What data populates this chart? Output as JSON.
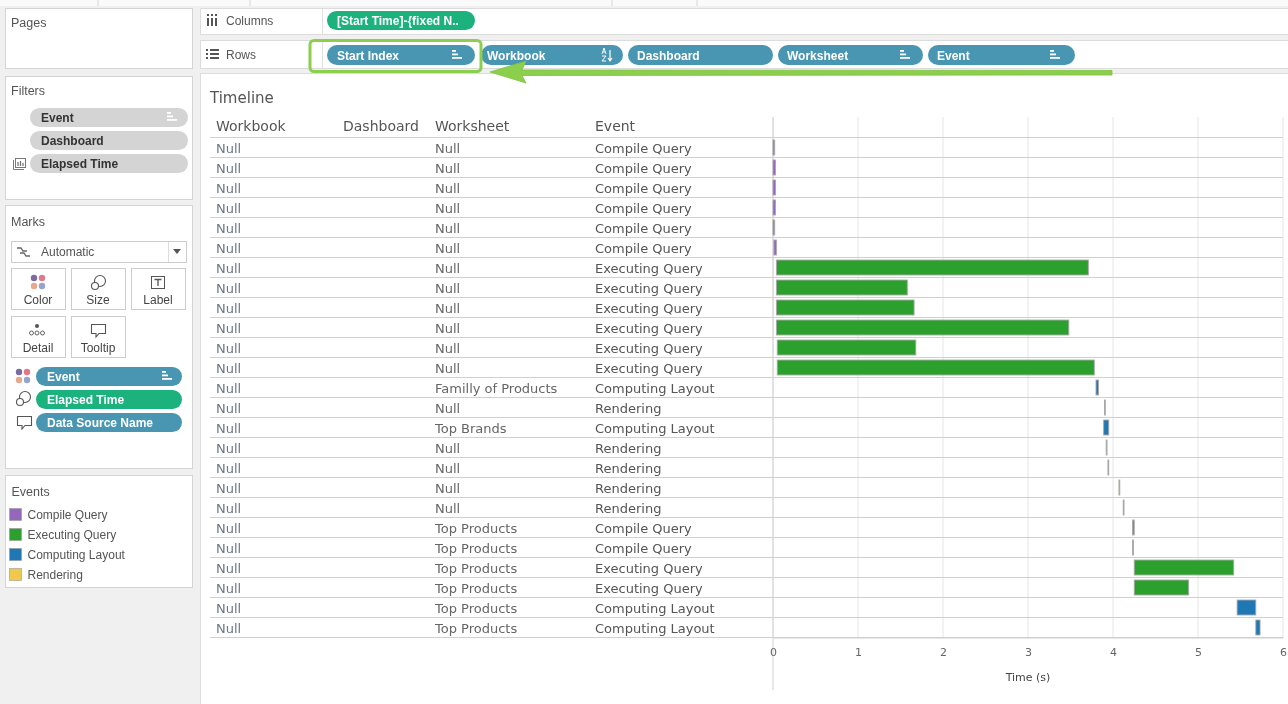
{
  "chart_data": {
    "type": "bar",
    "orientation": "horizontal",
    "title": "Timeline",
    "xlabel": "Time (s)",
    "ylabel": "Event",
    "legend_title": "Events",
    "categories": [
      "Compile Query",
      "Compile Query",
      "Compile Query",
      "Compile Query",
      "Compile Query",
      "Compile Query",
      "Executing Query",
      "Executing Query",
      "Executing Query",
      "Executing Query",
      "Executing Query",
      "Executing Query",
      "Computing Layout",
      "Rendering",
      "Computing Layout",
      "Rendering",
      "Rendering",
      "Rendering",
      "Rendering",
      "Compile Query",
      "Compile Query",
      "Executing Query",
      "Executing Query",
      "Computing Layout",
      "Computing Layout"
    ],
    "series": [
      {
        "name": "Compile Query",
        "color": "#9467bd",
        "values": [
          0.02,
          0.03,
          0.03,
          0.03,
          0.02,
          0.03,
          null,
          null,
          null,
          null,
          null,
          null,
          null,
          null,
          null,
          null,
          null,
          null,
          null,
          0.02,
          0.01,
          null,
          null,
          null,
          null
        ],
        "base": [
          0,
          0,
          0,
          0,
          0,
          0.01,
          null,
          null,
          null,
          null,
          null,
          null,
          null,
          null,
          null,
          null,
          null,
          null,
          null,
          4.23,
          4.23,
          null,
          null,
          null,
          null
        ]
      },
      {
        "name": "Executing Query",
        "color": "#2ca02c",
        "values": [
          null,
          null,
          null,
          null,
          null,
          null,
          3.67,
          1.54,
          1.62,
          3.44,
          1.63,
          3.73,
          null,
          null,
          null,
          null,
          null,
          null,
          null,
          null,
          null,
          1.17,
          0.64,
          null,
          null
        ],
        "base": [
          null,
          null,
          null,
          null,
          null,
          null,
          0.04,
          0.04,
          0.04,
          0.04,
          0.05,
          0.05,
          null,
          null,
          null,
          null,
          null,
          null,
          null,
          null,
          null,
          4.25,
          4.25,
          null,
          null
        ]
      },
      {
        "name": "Computing Layout",
        "color": "#1f77b4",
        "values": [
          null,
          null,
          null,
          null,
          null,
          null,
          null,
          null,
          null,
          null,
          null,
          null,
          0.03,
          null,
          0.06,
          null,
          null,
          null,
          null,
          null,
          null,
          null,
          null,
          0.22,
          0.05
        ],
        "base": [
          null,
          null,
          null,
          null,
          null,
          null,
          null,
          null,
          null,
          null,
          null,
          null,
          3.8,
          null,
          3.89,
          null,
          null,
          null,
          null,
          null,
          null,
          null,
          null,
          5.46,
          5.68
        ]
      },
      {
        "name": "Rendering",
        "color": "#f1c84e",
        "values": [
          null,
          null,
          null,
          null,
          null,
          null,
          null,
          null,
          null,
          null,
          null,
          null,
          null,
          0.01,
          null,
          0.01,
          0.01,
          0.01,
          0.01,
          null,
          null,
          null,
          null,
          null,
          null
        ],
        "base": [
          null,
          null,
          null,
          null,
          null,
          null,
          null,
          null,
          null,
          null,
          null,
          null,
          null,
          3.9,
          null,
          3.92,
          3.94,
          4.07,
          4.12,
          null,
          null,
          null,
          null,
          null,
          null
        ]
      }
    ],
    "xlim": [
      0,
      6
    ],
    "xticks": [
      0,
      1,
      2,
      3,
      4,
      5,
      6
    ],
    "grid": "x",
    "legend": "left",
    "annotations": [
      "Workbook",
      "Dashboard",
      "Worksheet",
      "Null",
      "Null",
      "Null",
      "Null",
      "Null",
      "Null",
      "Null",
      "Null",
      "Null",
      "Null",
      "Null",
      "Null",
      "Null",
      "Null",
      "Null",
      "Null",
      "Null",
      "Null",
      "Null",
      "Null",
      "Null",
      "Null",
      "Null",
      "Null",
      "Null",
      "Null",
      "Null",
      "Null",
      "Null",
      "Null",
      "Null",
      "Null",
      "Null",
      "Null",
      "Null",
      "Null",
      "Null",
      "Familly of Products",
      "Null",
      "Top Brands",
      "Null",
      "Null",
      "Null",
      "Null",
      "Top Products",
      "Top Products",
      "Top Products",
      "Top Products",
      "Top Products",
      "Top Products",
      "Pages",
      "Filters",
      "Event",
      "Dashboard",
      "Elapsed Time",
      "Marks",
      "Automatic",
      "Color",
      "Size",
      "Label",
      "Detail",
      "Tooltip",
      "Event",
      "Elapsed Time",
      "Data Source Name",
      "Columns",
      "[Start Time]-{fixed N..",
      "Rows",
      "Start Index",
      "Workbook",
      "Dashboard",
      "Worksheet",
      "Event"
    ]
  }
}
